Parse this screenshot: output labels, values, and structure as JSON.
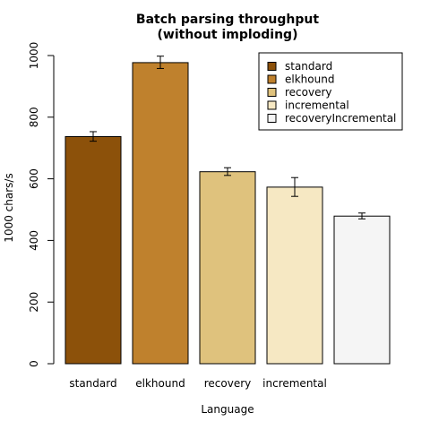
{
  "chart_data": {
    "type": "bar",
    "title_lines": [
      "Batch parsing throughput",
      "(without imploding)"
    ],
    "xlabel": "Language",
    "ylabel": "1000 chars/s",
    "ylim": [
      0,
      1000
    ],
    "yticks": [
      0,
      200,
      400,
      600,
      800,
      1000
    ],
    "categories": [
      "standard",
      "elkhound",
      "recovery",
      "incremental",
      "recoveryIncremental"
    ],
    "tick_labels": [
      "standard",
      "elkhound",
      "recovery",
      "incremental",
      ""
    ],
    "values": [
      737,
      977,
      623,
      573,
      479
    ],
    "errors": [
      [
        722,
        753
      ],
      [
        958,
        998
      ],
      [
        611,
        636
      ],
      [
        543,
        604
      ],
      [
        470,
        489
      ]
    ],
    "colors": [
      "#8c510a",
      "#bf812d",
      "#dfc27d",
      "#f6e8c3",
      "#f5f5f5"
    ],
    "legend": {
      "placement": "top-right",
      "entries": [
        "standard",
        "elkhound",
        "recovery",
        "incremental",
        "recoveryIncremental"
      ]
    },
    "grid": false
  }
}
